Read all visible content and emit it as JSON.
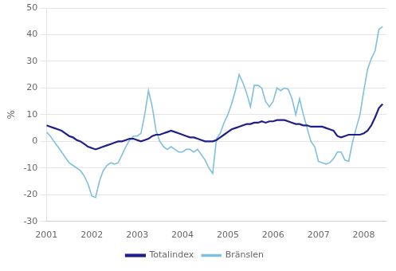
{
  "chart_data": {
    "type": "line",
    "ylabel": "%",
    "x": [
      2001,
      2001.0833333333333,
      2001.1666666666667,
      2001.25,
      2001.3333333333333,
      2001.4166666666667,
      2001.5,
      2001.5833333333333,
      2001.6666666666667,
      2001.75,
      2001.8333333333333,
      2001.9166666666667,
      2002,
      2002.0833333333333,
      2002.1666666666667,
      2002.25,
      2002.3333333333333,
      2002.4166666666667,
      2002.5,
      2002.5833333333333,
      2002.6666666666667,
      2002.75,
      2002.8333333333333,
      2002.9166666666667,
      2003,
      2003.0833333333333,
      2003.1666666666667,
      2003.25,
      2003.3333333333333,
      2003.4166666666667,
      2003.5,
      2003.5833333333333,
      2003.6666666666667,
      2003.75,
      2003.8333333333333,
      2003.9166666666667,
      2004,
      2004.0833333333333,
      2004.1666666666667,
      2004.25,
      2004.3333333333333,
      2004.4166666666667,
      2004.5,
      2004.5833333333333,
      2004.6666666666667,
      2004.75,
      2004.8333333333333,
      2004.9166666666667,
      2005,
      2005.0833333333333,
      2005.1666666666667,
      2005.25,
      2005.3333333333333,
      2005.4166666666667,
      2005.5,
      2005.5833333333333,
      2005.6666666666667,
      2005.75,
      2005.8333333333333,
      2005.9166666666667,
      2006,
      2006.0833333333333,
      2006.1666666666667,
      2006.25,
      2006.3333333333333,
      2006.4166666666667,
      2006.5,
      2006.5833333333333,
      2006.6666666666667,
      2006.75,
      2006.8333333333333,
      2006.9166666666667,
      2007,
      2007.0833333333333,
      2007.1666666666667,
      2007.25,
      2007.3333333333333,
      2007.4166666666667,
      2007.5,
      2007.5833333333333,
      2007.6666666666667,
      2007.75,
      2007.8333333333333,
      2007.9166666666667,
      2008,
      2008.0833333333333,
      2008.1666666666667,
      2008.25,
      2008.3333333333333,
      2008.4166666666667
    ],
    "series": [
      {
        "name": "Bränslen",
        "color": "#7FBFDF",
        "values": [
          3.5,
          2.0,
          0.0,
          -2.0,
          -4.0,
          -6.0,
          -8.0,
          -9.0,
          -10.0,
          -11.0,
          -13.0,
          -16.0,
          -20.5,
          -21.0,
          -15.0,
          -11.0,
          -9.0,
          -8.0,
          -8.5,
          -8.0,
          -5.0,
          -2.0,
          0.5,
          2.0,
          2.0,
          3.0,
          10.0,
          19.0,
          13.0,
          4.0,
          0.0,
          -2.0,
          -3.0,
          -2.0,
          -3.0,
          -4.0,
          -4.0,
          -3.0,
          -3.0,
          -4.0,
          -3.0,
          -5.0,
          -7.0,
          -10.0,
          -12.0,
          1.0,
          3.0,
          7.0,
          10.0,
          14.0,
          19.0,
          25.0,
          22.0,
          18.0,
          13.0,
          21.0,
          21.0,
          20.0,
          15.0,
          13.0,
          15.0,
          20.0,
          19.0,
          20.0,
          19.5,
          16.0,
          10.0,
          16.0,
          10.0,
          5.0,
          0.0,
          -2.0,
          -7.5,
          -8.0,
          -8.5,
          -8.0,
          -6.5,
          -4.0,
          -4.0,
          -7.0,
          -7.5,
          -0.5,
          5.0,
          10.0,
          19.0,
          27.0,
          31.0,
          34.0,
          42.0,
          43.0
        ]
      },
      {
        "name": "Totalindex",
        "color": "#1F1F8B",
        "values": [
          6.0,
          5.5,
          5.0,
          4.5,
          4.0,
          3.0,
          2.0,
          1.5,
          0.5,
          0.0,
          -1.0,
          -2.0,
          -2.5,
          -3.0,
          -2.5,
          -2.0,
          -1.5,
          -1.0,
          -0.5,
          0.0,
          0.0,
          0.5,
          1.0,
          1.0,
          0.5,
          0.0,
          0.5,
          1.0,
          2.0,
          2.5,
          2.5,
          3.0,
          3.5,
          4.0,
          3.5,
          3.0,
          2.5,
          2.0,
          1.5,
          1.5,
          1.0,
          0.5,
          0.0,
          0.0,
          0.0,
          0.5,
          1.5,
          2.5,
          3.5,
          4.5,
          5.0,
          5.5,
          6.0,
          6.5,
          6.5,
          7.0,
          7.0,
          7.5,
          7.0,
          7.5,
          7.5,
          8.0,
          8.0,
          8.0,
          7.5,
          7.0,
          6.5,
          6.5,
          6.0,
          6.0,
          5.5,
          5.5,
          5.5,
          5.5,
          5.0,
          4.5,
          4.0,
          2.0,
          1.5,
          2.0,
          2.5,
          2.5,
          2.5,
          2.5,
          3.0,
          4.0,
          6.0,
          9.0,
          12.5,
          14.0
        ]
      }
    ],
    "xlim": [
      2001.0,
      2008.5
    ],
    "xticks": [
      2001,
      2002,
      2003,
      2004,
      2005,
      2006,
      2007,
      2008
    ],
    "ylim": [
      -30,
      50
    ],
    "yticks": [
      -30,
      -20,
      -10,
      0,
      10,
      20,
      30,
      40,
      50
    ],
    "grid": true,
    "legend": "bottom"
  }
}
